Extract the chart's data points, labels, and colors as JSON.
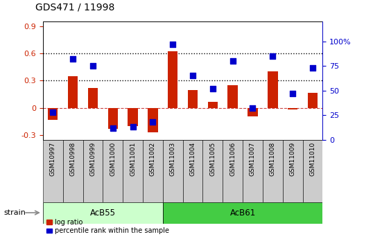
{
  "title": "GDS471 / 11998",
  "samples": [
    "GSM10997",
    "GSM10998",
    "GSM10999",
    "GSM11000",
    "GSM11001",
    "GSM11002",
    "GSM11003",
    "GSM11004",
    "GSM11005",
    "GSM11006",
    "GSM11007",
    "GSM11008",
    "GSM11009",
    "GSM11010"
  ],
  "log_ratio": [
    -0.13,
    0.35,
    0.22,
    -0.23,
    -0.2,
    -0.27,
    0.62,
    0.2,
    0.07,
    0.25,
    -0.09,
    0.4,
    -0.02,
    0.17
  ],
  "pct_rank": [
    28,
    82,
    75,
    12,
    13,
    18,
    97,
    65,
    52,
    80,
    32,
    85,
    47,
    73
  ],
  "groups": [
    {
      "label": "AcB55",
      "start": 0,
      "end": 6,
      "color_light": "#ccffcc",
      "color_dark": "#66dd66"
    },
    {
      "label": "AcB61",
      "start": 6,
      "end": 14,
      "color_light": "#66ee66",
      "color_dark": "#44cc44"
    }
  ],
  "bar_color": "#cc2200",
  "dot_color": "#0000cc",
  "ylim_left": [
    -0.35,
    0.95
  ],
  "ylim_right": [
    0,
    120
  ],
  "yticks_left": [
    -0.3,
    0.0,
    0.3,
    0.6,
    0.9
  ],
  "yticks_right": [
    0,
    25,
    50,
    75,
    100
  ],
  "hlines": [
    0.3,
    0.6
  ],
  "zero_color": "#cc4444",
  "bg_color": "#ffffff",
  "bar_width": 0.5,
  "dot_size": 35,
  "tick_label_color_left": "#cc2200",
  "tick_label_color_right": "#0000cc",
  "tick_bg_color": "#cccccc",
  "strain_label": "strain",
  "legend_labels": [
    "log ratio",
    "percentile rank within the sample"
  ]
}
